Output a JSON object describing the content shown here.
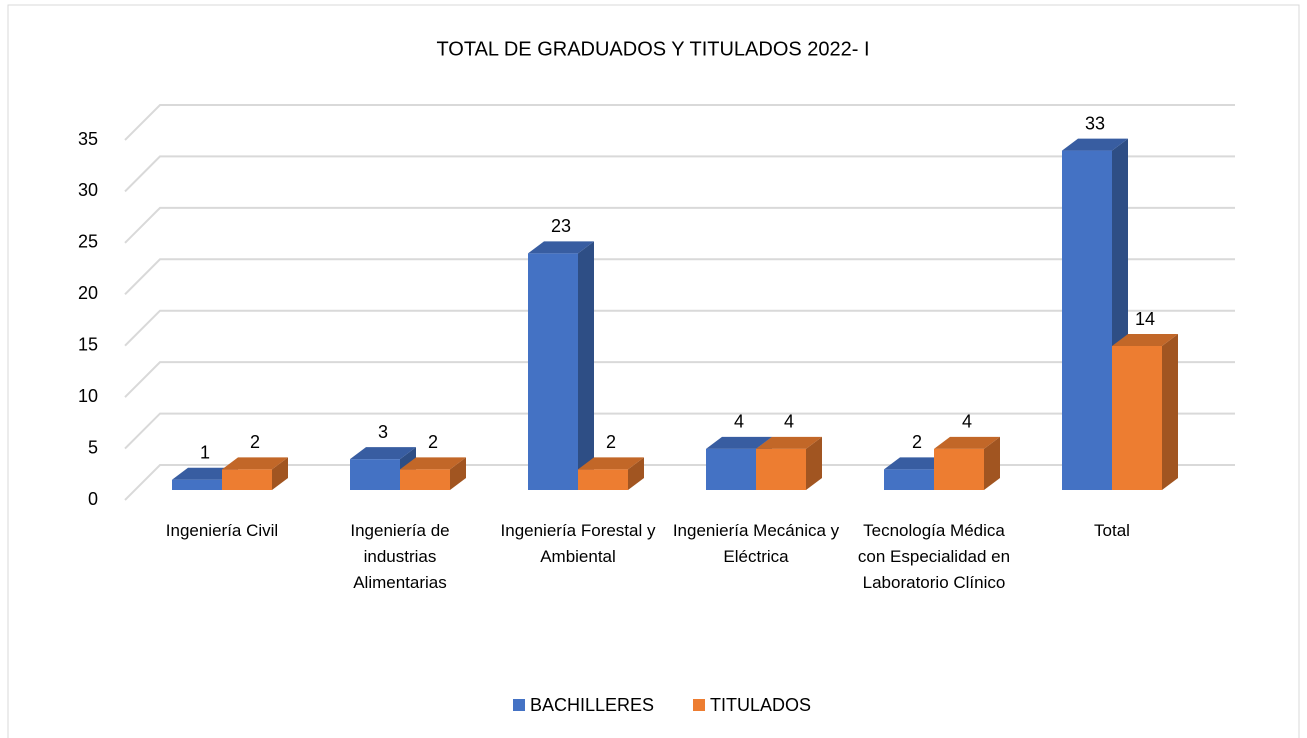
{
  "chart_data": {
    "type": "bar3d",
    "title": "TOTAL DE GRADUADOS Y TITULADOS 2022- I",
    "categories": [
      "Ingeniería Civil",
      "Ingeniería de industrias Alimentarias",
      "Ingeniería Forestal y Ambiental",
      "Ingeniería Mecánica y Eléctrica",
      "Tecnología Médica con Especialidad en Laboratorio Clínico",
      "Total"
    ],
    "series": [
      {
        "name": "BACHILLERES",
        "color": "#4472c4",
        "values": [
          1,
          3,
          23,
          4,
          2,
          33
        ]
      },
      {
        "name": "TITULADOS",
        "color": "#ed7d31",
        "values": [
          2,
          2,
          2,
          4,
          4,
          14
        ]
      }
    ],
    "ylim": [
      0,
      35
    ],
    "yticks": [
      0,
      5,
      10,
      15,
      20,
      25,
      30,
      35
    ],
    "grid": true,
    "legend": "bottom"
  }
}
